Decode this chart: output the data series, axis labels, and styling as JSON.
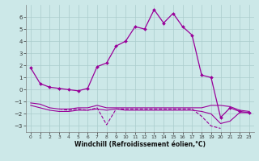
{
  "xlabel": "Windchill (Refroidissement éolien,°C)",
  "line_color": "#990099",
  "bg_color": "#cce8e8",
  "grid_color": "#aacccc",
  "xlim": [
    -0.5,
    23.5
  ],
  "ylim": [
    -3.5,
    7.0
  ],
  "yticks": [
    -3,
    -2,
    -1,
    0,
    1,
    2,
    3,
    4,
    5,
    6
  ],
  "xticks": [
    0,
    1,
    2,
    3,
    4,
    5,
    6,
    7,
    8,
    9,
    10,
    11,
    12,
    13,
    14,
    15,
    16,
    17,
    18,
    19,
    20,
    21,
    22,
    23
  ],
  "s1_x": [
    0,
    1,
    2,
    3,
    4,
    5,
    6,
    7,
    8,
    9,
    10,
    11,
    12,
    13,
    14,
    15,
    16,
    17,
    18,
    19,
    20,
    21,
    22,
    23
  ],
  "s1_y": [
    1.8,
    0.5,
    0.2,
    0.1,
    0.0,
    -0.1,
    0.1,
    1.9,
    2.2,
    3.6,
    4.0,
    5.2,
    5.0,
    6.6,
    5.5,
    6.3,
    5.2,
    4.5,
    1.2,
    1.0,
    -2.3,
    -1.5,
    -1.8,
    -1.9
  ],
  "s2_x": [
    0,
    1,
    2,
    3,
    4,
    5,
    6,
    7,
    8,
    9,
    10,
    11,
    12,
    13,
    14,
    15,
    16,
    17,
    18,
    19,
    20,
    21,
    22,
    23
  ],
  "s2_y": [
    -1.1,
    -1.2,
    -1.5,
    -1.6,
    -1.6,
    -1.5,
    -1.5,
    -1.3,
    -1.5,
    -1.5,
    -1.5,
    -1.5,
    -1.5,
    -1.5,
    -1.5,
    -1.5,
    -1.5,
    -1.5,
    -1.5,
    -1.3,
    -1.3,
    -1.4,
    -1.7,
    -1.8
  ],
  "s3_x": [
    0,
    1,
    2,
    3,
    4,
    5,
    6,
    7,
    8,
    9,
    10,
    11,
    12,
    13,
    14,
    15,
    16,
    17,
    18,
    19,
    20,
    21,
    22,
    23
  ],
  "s3_y": [
    -1.3,
    -1.5,
    -1.7,
    -1.8,
    -1.8,
    -1.7,
    -1.7,
    -1.6,
    -1.7,
    -1.6,
    -1.7,
    -1.7,
    -1.7,
    -1.7,
    -1.7,
    -1.7,
    -1.7,
    -1.7,
    -1.8,
    -2.0,
    -2.8,
    -2.6,
    -1.9,
    -1.9
  ],
  "s4_x": [
    3,
    4,
    5,
    6,
    7,
    8,
    9,
    10,
    11,
    12,
    13,
    14,
    15,
    16,
    17,
    18,
    19,
    20
  ],
  "s4_y": [
    -1.6,
    -1.7,
    -1.6,
    -1.7,
    -1.5,
    -2.9,
    -1.6,
    -1.6,
    -1.6,
    -1.6,
    -1.6,
    -1.6,
    -1.6,
    -1.6,
    -1.6,
    -2.2,
    -3.0,
    -3.2
  ]
}
